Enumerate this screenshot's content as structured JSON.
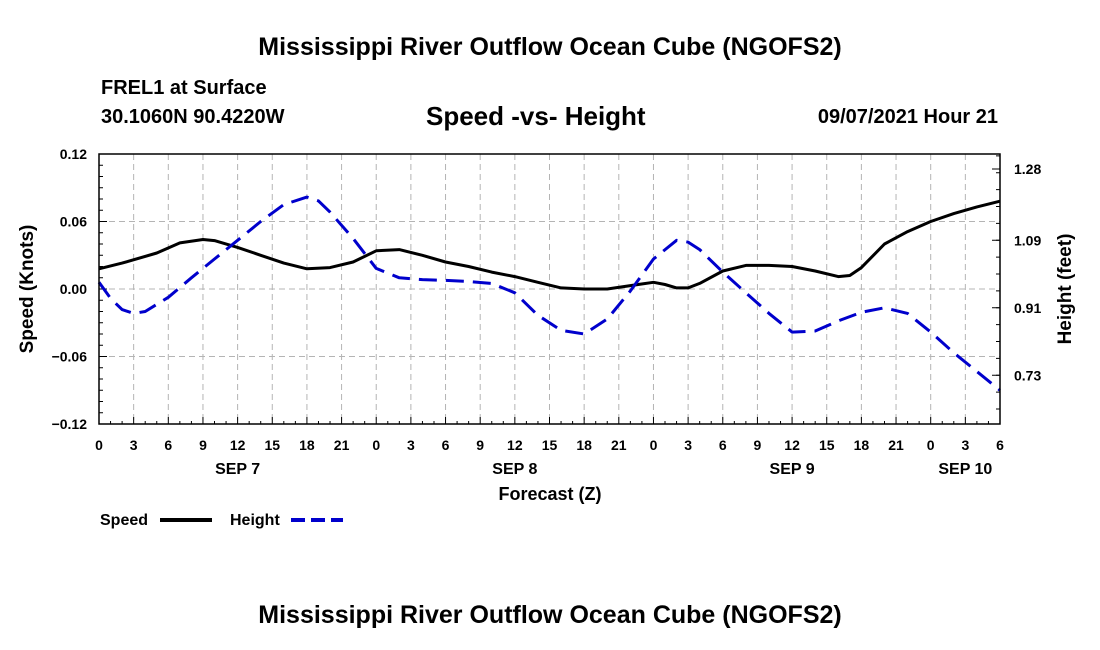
{
  "page": {
    "title_top": "Mississippi River Outflow Ocean Cube (NGOFS2)",
    "title_bottom": "Mississippi River Outflow Ocean Cube (NGOFS2)",
    "station": "FREL1 at Surface",
    "coords": "30.1060N  90.4220W",
    "subtitle": "Speed -vs- Height",
    "datetime": "09/07/2021 Hour 21"
  },
  "chart_data": {
    "type": "line",
    "title": "Speed -vs- Height",
    "xlabel": "Forecast (Z)",
    "ylabel": "Speed (Knots)",
    "y2label": "Height (feet)",
    "x_unit": "hours from Sep 7 00Z",
    "xlim": [
      0,
      78
    ],
    "ylim": [
      -0.12,
      0.12
    ],
    "y2lim": [
      0.6,
      1.32
    ],
    "grid": true,
    "x_ticks": [
      0,
      3,
      6,
      9,
      12,
      15,
      18,
      21,
      24,
      27,
      30,
      33,
      36,
      39,
      42,
      45,
      48,
      51,
      54,
      57,
      60,
      63,
      66,
      69,
      72,
      75,
      78
    ],
    "x_tick_labels": [
      "0",
      "3",
      "6",
      "9",
      "12",
      "15",
      "18",
      "21",
      "0",
      "3",
      "6",
      "9",
      "12",
      "15",
      "18",
      "21",
      "0",
      "3",
      "6",
      "9",
      "12",
      "15",
      "18",
      "21",
      "0",
      "3",
      "6"
    ],
    "date_labels": [
      {
        "x": 12,
        "label": "SEP 7"
      },
      {
        "x": 36,
        "label": "SEP 8"
      },
      {
        "x": 60,
        "label": "SEP 9"
      },
      {
        "x": 75,
        "label": "SEP 10"
      }
    ],
    "y_ticks": [
      -0.12,
      -0.06,
      0.0,
      0.06,
      0.12
    ],
    "y_tick_labels": [
      "−0.12",
      "−0.06",
      "0.00",
      "0.06",
      "0.12"
    ],
    "y2_ticks": [
      0.73,
      0.91,
      1.09,
      1.28
    ],
    "y2_tick_labels": [
      "0.73",
      "0.91",
      "1.09",
      "1.28"
    ],
    "legend": [
      {
        "name": "Speed",
        "color": "#000000",
        "dash": "solid"
      },
      {
        "name": "Height",
        "color": "#0000cc",
        "dash": "dashed"
      }
    ],
    "series": [
      {
        "name": "Speed",
        "axis": "left",
        "color": "#000000",
        "dash": "solid",
        "x": [
          0,
          2,
          5,
          7,
          9,
          10,
          12,
          14,
          16,
          18,
          20,
          22,
          24,
          26,
          28,
          30,
          32,
          34,
          36,
          38,
          40,
          42,
          44,
          46,
          48,
          49,
          50,
          51,
          52,
          54,
          56,
          58,
          60,
          62,
          64,
          65,
          66,
          68,
          70,
          72,
          74,
          76,
          78
        ],
        "y": [
          0.018,
          0.023,
          0.032,
          0.041,
          0.044,
          0.043,
          0.037,
          0.03,
          0.023,
          0.018,
          0.019,
          0.024,
          0.034,
          0.035,
          0.03,
          0.024,
          0.02,
          0.015,
          0.011,
          0.006,
          0.001,
          0.0,
          0.0,
          0.003,
          0.006,
          0.004,
          0.001,
          0.001,
          0.005,
          0.016,
          0.021,
          0.021,
          0.02,
          0.016,
          0.011,
          0.012,
          0.019,
          0.04,
          0.051,
          0.06,
          0.067,
          0.073,
          0.078
        ]
      },
      {
        "name": "Height",
        "axis": "right",
        "color": "#0000cc",
        "dash": "dashed",
        "x": [
          0,
          1,
          2,
          3,
          4,
          6,
          8,
          10,
          12,
          14,
          16,
          18,
          19,
          20,
          22,
          24,
          26,
          28,
          30,
          32,
          34,
          36,
          38,
          40,
          42,
          44,
          46,
          48,
          50,
          51,
          52,
          54,
          56,
          58,
          60,
          62,
          64,
          66,
          68,
          70,
          72,
          74,
          76,
          78
        ],
        "y": [
          0.978,
          0.935,
          0.905,
          0.895,
          0.9,
          0.938,
          0.99,
          1.04,
          1.09,
          1.14,
          1.185,
          1.205,
          1.195,
          1.165,
          1.095,
          1.015,
          0.99,
          0.985,
          0.983,
          0.98,
          0.975,
          0.95,
          0.89,
          0.85,
          0.84,
          0.88,
          0.955,
          1.04,
          1.09,
          1.085,
          1.065,
          1.005,
          0.95,
          0.895,
          0.845,
          0.848,
          0.875,
          0.898,
          0.91,
          0.895,
          0.845,
          0.79,
          0.74,
          0.69
        ]
      }
    ]
  }
}
